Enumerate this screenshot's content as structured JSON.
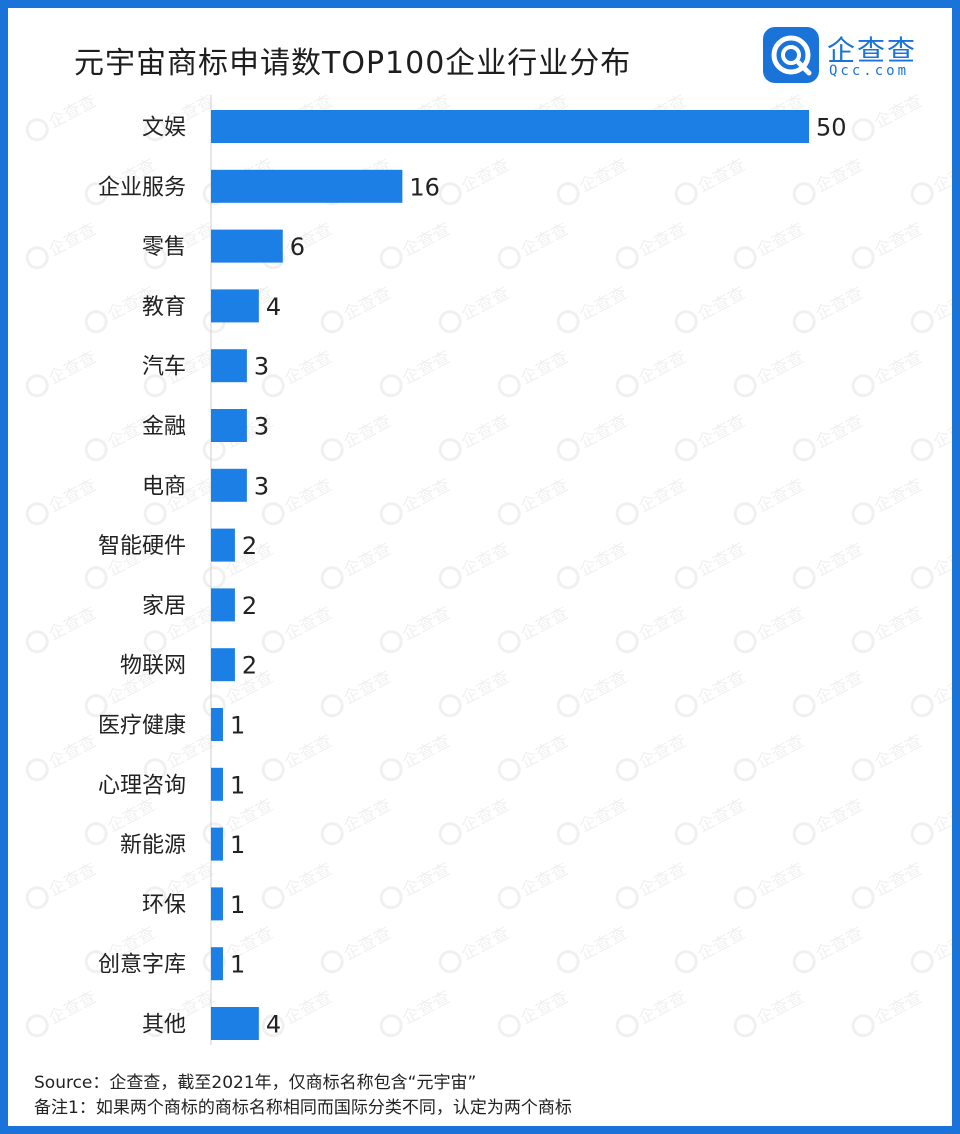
{
  "header": {
    "title": "元宇宙商标申请数TOP100企业行业分布",
    "logo_name": "企查查",
    "logo_url": "Qcc.com"
  },
  "watermark_text": "企查查",
  "colors": {
    "bar": "#1c7fe6",
    "frame": "#1a73d8",
    "axis": "#cfcfcf"
  },
  "chart_data": {
    "type": "bar",
    "orientation": "horizontal",
    "title": "元宇宙商标申请数TOP100企业行业分布",
    "xlabel": "",
    "ylabel": "",
    "categories": [
      "文娱",
      "企业服务",
      "零售",
      "教育",
      "汽车",
      "金融",
      "电商",
      "智能硬件",
      "家居",
      "物联网",
      "医疗健康",
      "心理咨询",
      "新能源",
      "环保",
      "创意字库",
      "其他"
    ],
    "values": [
      50,
      16,
      6,
      4,
      3,
      3,
      3,
      2,
      2,
      2,
      1,
      1,
      1,
      1,
      1,
      4
    ],
    "xlim": [
      0,
      50
    ],
    "data_labels": true,
    "grid": false,
    "legend": "none"
  },
  "footer": {
    "source": "Source：企查查，截至2021年，仅商标名称包含“元宇宙”",
    "note": "备注1：如果两个商标的商标名称相同而国际分类不同，认定为两个商标"
  }
}
